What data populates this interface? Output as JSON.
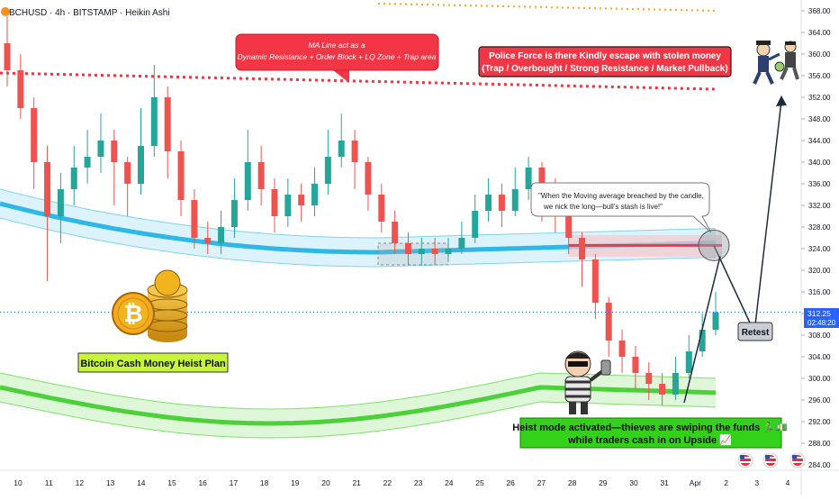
{
  "header": {
    "symbol_line": "BCHUSD · 4h · BITSTAMP · Heikin Ashi"
  },
  "annotations": {
    "ma_note_line1": "MA Line act as a",
    "ma_note_line2": "Dynamic Resistance + Order Block + LQ Zone + Trap area",
    "police_line1": "Police Force is there Kindly escape with stolen money",
    "police_line2": "(Trap / Overbought / Strong Resistance / Market Pullback)",
    "quote_line1": "\"When the Moving average breached by the candle,",
    "quote_line2": "we nick the long—bull's stash is live!\"",
    "retest_label": "Retest",
    "plan_label": "Bitcoin Cash Money Heist Plan",
    "heist_line1": "Heist mode activated—thieves are swiping the funds 🏃‍♂️💵",
    "heist_line2": "while traders cash in on Upside 📈"
  },
  "price_tag": {
    "price": "312.25",
    "countdown": "02:48:20"
  },
  "colors": {
    "bull": "#26a69a",
    "bear": "#ef5350",
    "ma_upper": "#2eb8e8",
    "ma_lower": "#4cd13a",
    "resistance_dots": "#ef3340",
    "zone_red": "#f23645",
    "label_red": "#f23645",
    "label_green": "#33d11a",
    "price_tag_bg": "#2962ff"
  },
  "chart_data": {
    "type": "candlestick",
    "y_axis": {
      "ticks": [
        368,
        364,
        360,
        356,
        352,
        348,
        344,
        340,
        336,
        332,
        328,
        324,
        320,
        316,
        312,
        308,
        304,
        300,
        296,
        292,
        288,
        284
      ],
      "tick_labels": [
        "368.00",
        "364.00",
        "360.00",
        "356.00",
        "352.00",
        "348.00",
        "344.00",
        "340.00",
        "336.00",
        "332.00",
        "328.00",
        "324.00",
        "320.00",
        "316.00",
        "312.00",
        "308.00",
        "304.00",
        "300.00",
        "296.00",
        "292.00",
        "288.00",
        "284.00"
      ],
      "range": [
        283,
        369
      ]
    },
    "x_axis": {
      "labels": [
        "10",
        "11",
        "12",
        "13",
        "14",
        "15",
        "16",
        "17",
        "18",
        "19",
        "20",
        "21",
        "22",
        "23",
        "24",
        "25",
        "26",
        "27",
        "28",
        "29",
        "30",
        "31",
        "Apr",
        "2",
        "3",
        "4"
      ]
    },
    "resistance_level": 355,
    "order_block_zone": [
      323.5,
      325.5
    ],
    "current_price": 312.25,
    "retest_target": 308.5,
    "projection_target": 356,
    "candles": [
      {
        "o": 362,
        "c": 357,
        "h": 367,
        "l": 354
      },
      {
        "o": 357,
        "c": 350,
        "h": 360,
        "l": 348
      },
      {
        "o": 350,
        "c": 340,
        "h": 352,
        "l": 335
      },
      {
        "o": 340,
        "c": 330,
        "h": 343,
        "l": 318
      },
      {
        "o": 330,
        "c": 335,
        "h": 338,
        "l": 325
      },
      {
        "o": 335,
        "c": 339,
        "h": 343,
        "l": 332
      },
      {
        "o": 339,
        "c": 341,
        "h": 346,
        "l": 336
      },
      {
        "o": 341,
        "c": 344,
        "h": 349,
        "l": 338
      },
      {
        "o": 344,
        "c": 340,
        "h": 346,
        "l": 332
      },
      {
        "o": 340,
        "c": 336,
        "h": 341,
        "l": 330
      },
      {
        "o": 336,
        "c": 343,
        "h": 350,
        "l": 334
      },
      {
        "o": 343,
        "c": 352,
        "h": 358,
        "l": 341
      },
      {
        "o": 352,
        "c": 342,
        "h": 354,
        "l": 337
      },
      {
        "o": 342,
        "c": 333,
        "h": 344,
        "l": 330
      },
      {
        "o": 333,
        "c": 326,
        "h": 335,
        "l": 324
      },
      {
        "o": 326,
        "c": 325,
        "h": 329,
        "l": 323
      },
      {
        "o": 325,
        "c": 328,
        "h": 331,
        "l": 323
      },
      {
        "o": 328,
        "c": 333,
        "h": 337,
        "l": 326
      },
      {
        "o": 333,
        "c": 340,
        "h": 346,
        "l": 331
      },
      {
        "o": 340,
        "c": 335,
        "h": 343,
        "l": 332
      },
      {
        "o": 335,
        "c": 330,
        "h": 337,
        "l": 327
      },
      {
        "o": 330,
        "c": 334,
        "h": 337,
        "l": 328
      },
      {
        "o": 334,
        "c": 332,
        "h": 336,
        "l": 329
      },
      {
        "o": 332,
        "c": 336,
        "h": 339,
        "l": 330
      },
      {
        "o": 336,
        "c": 341,
        "h": 346,
        "l": 334
      },
      {
        "o": 341,
        "c": 344,
        "h": 349,
        "l": 339
      },
      {
        "o": 344,
        "c": 340,
        "h": 346,
        "l": 335
      },
      {
        "o": 340,
        "c": 334,
        "h": 341,
        "l": 331
      },
      {
        "o": 334,
        "c": 329,
        "h": 336,
        "l": 327
      },
      {
        "o": 329,
        "c": 325,
        "h": 331,
        "l": 323
      },
      {
        "o": 325,
        "c": 323,
        "h": 327,
        "l": 321
      },
      {
        "o": 323,
        "c": 324,
        "h": 326,
        "l": 321
      },
      {
        "o": 324,
        "c": 323,
        "h": 326,
        "l": 321
      },
      {
        "o": 323,
        "c": 324,
        "h": 326,
        "l": 322
      },
      {
        "o": 324,
        "c": 326,
        "h": 329,
        "l": 323
      },
      {
        "o": 326,
        "c": 331,
        "h": 334,
        "l": 325
      },
      {
        "o": 331,
        "c": 334,
        "h": 337,
        "l": 329
      },
      {
        "o": 334,
        "c": 331,
        "h": 336,
        "l": 328
      },
      {
        "o": 331,
        "c": 335,
        "h": 339,
        "l": 330
      },
      {
        "o": 335,
        "c": 339,
        "h": 341,
        "l": 333
      },
      {
        "o": 339,
        "c": 335,
        "h": 340,
        "l": 329
      },
      {
        "o": 335,
        "c": 331,
        "h": 337,
        "l": 327
      },
      {
        "o": 331,
        "c": 326,
        "h": 332,
        "l": 323
      },
      {
        "o": 326,
        "c": 322,
        "h": 327,
        "l": 317
      },
      {
        "o": 322,
        "c": 314,
        "h": 323,
        "l": 311
      },
      {
        "o": 314,
        "c": 307,
        "h": 315,
        "l": 304
      },
      {
        "o": 307,
        "c": 304,
        "h": 309,
        "l": 301
      },
      {
        "o": 304,
        "c": 301,
        "h": 306,
        "l": 298
      },
      {
        "o": 301,
        "c": 299,
        "h": 303,
        "l": 296
      },
      {
        "o": 299,
        "c": 297,
        "h": 301,
        "l": 295
      },
      {
        "o": 297,
        "c": 301,
        "h": 304,
        "l": 296
      },
      {
        "o": 301,
        "c": 305,
        "h": 308,
        "l": 300
      },
      {
        "o": 305,
        "c": 309,
        "h": 312,
        "l": 304
      },
      {
        "o": 309,
        "c": 312.25,
        "h": 316,
        "l": 308
      }
    ]
  }
}
